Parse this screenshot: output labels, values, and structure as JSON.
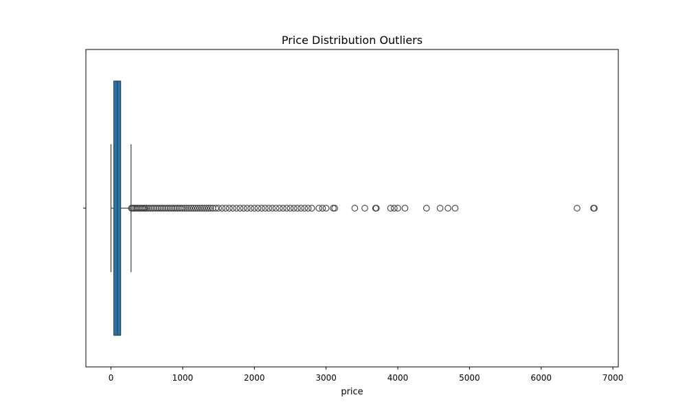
{
  "chart_data": {
    "type": "boxplot",
    "orientation": "horizontal",
    "title": "Price Distribution Outliers",
    "xlabel": "price",
    "ylabel": "",
    "xlim": [
      -350,
      7075
    ],
    "xticks": [
      0,
      1000,
      2000,
      3000,
      4000,
      5000,
      6000,
      7000
    ],
    "grid": false,
    "colors": {
      "box_fill": "#1f77b4",
      "lines": "#3d3d3d",
      "outlier_edge": "#3d3d3d"
    },
    "box": {
      "whisker_low": 0,
      "q1": 40,
      "median": 90,
      "q3": 135,
      "whisker_high": 280
    },
    "outliers": [
      285,
      300,
      320,
      340,
      360,
      380,
      400,
      420,
      440,
      460,
      480,
      500,
      525,
      550,
      575,
      600,
      625,
      650,
      675,
      700,
      725,
      750,
      775,
      800,
      825,
      850,
      875,
      900,
      925,
      950,
      975,
      1000,
      1030,
      1060,
      1090,
      1120,
      1150,
      1180,
      1210,
      1240,
      1270,
      1300,
      1330,
      1360,
      1390,
      1420,
      1460,
      1500,
      1550,
      1600,
      1650,
      1700,
      1750,
      1800,
      1850,
      1900,
      1950,
      2000,
      2050,
      2100,
      2150,
      2200,
      2250,
      2300,
      2350,
      2400,
      2450,
      2500,
      2550,
      2600,
      2650,
      2700,
      2750,
      2800,
      2900,
      2950,
      3000,
      3100,
      3120,
      3400,
      3540,
      3690,
      3700,
      3900,
      3950,
      4000,
      4100,
      4400,
      4590,
      4700,
      4800,
      6500,
      6730,
      6740
    ]
  }
}
